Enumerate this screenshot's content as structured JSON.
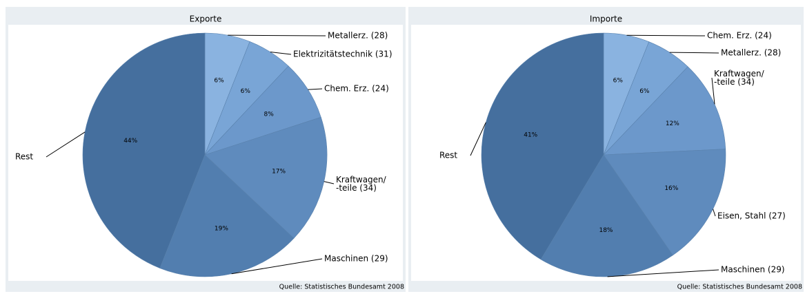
{
  "chart_data": [
    {
      "type": "pie",
      "title": "Exporte",
      "categories": [
        "Metallerz. (28)",
        "Elektrizitätstechnik (31)",
        "Chem. Erz. (24)",
        "Kraftwagen/\n-teile (34)",
        "Maschinen (29)",
        "Rest"
      ],
      "values": [
        6,
        6,
        8,
        17,
        19,
        44
      ],
      "value_labels": [
        "6%",
        "6%",
        "8%",
        "17%",
        "19%",
        "44%"
      ],
      "colors": [
        "#8ab3e0",
        "#79a5d6",
        "#6c98cb",
        "#5f8bbd",
        "#527eaf",
        "#456f9e"
      ],
      "source": "Quelle: Statistisches Bundesamt 2008"
    },
    {
      "type": "pie",
      "title": "Importe",
      "categories": [
        "Chem. Erz. (24)",
        "Metallerz. (28)",
        "Kraftwagen/\n-teile (34)",
        "Eisen, Stahl (27)",
        "Maschinen (29)",
        "Rest"
      ],
      "values": [
        6,
        6,
        12,
        16,
        18,
        41
      ],
      "value_labels": [
        "6%",
        "6%",
        "12%",
        "16%",
        "18%",
        "41%"
      ],
      "colors": [
        "#8ab3e0",
        "#79a5d6",
        "#6c98cb",
        "#5f8bbd",
        "#527eaf",
        "#456f9e"
      ],
      "source": "Quelle: Statistisches Bundesamt 2008"
    }
  ]
}
